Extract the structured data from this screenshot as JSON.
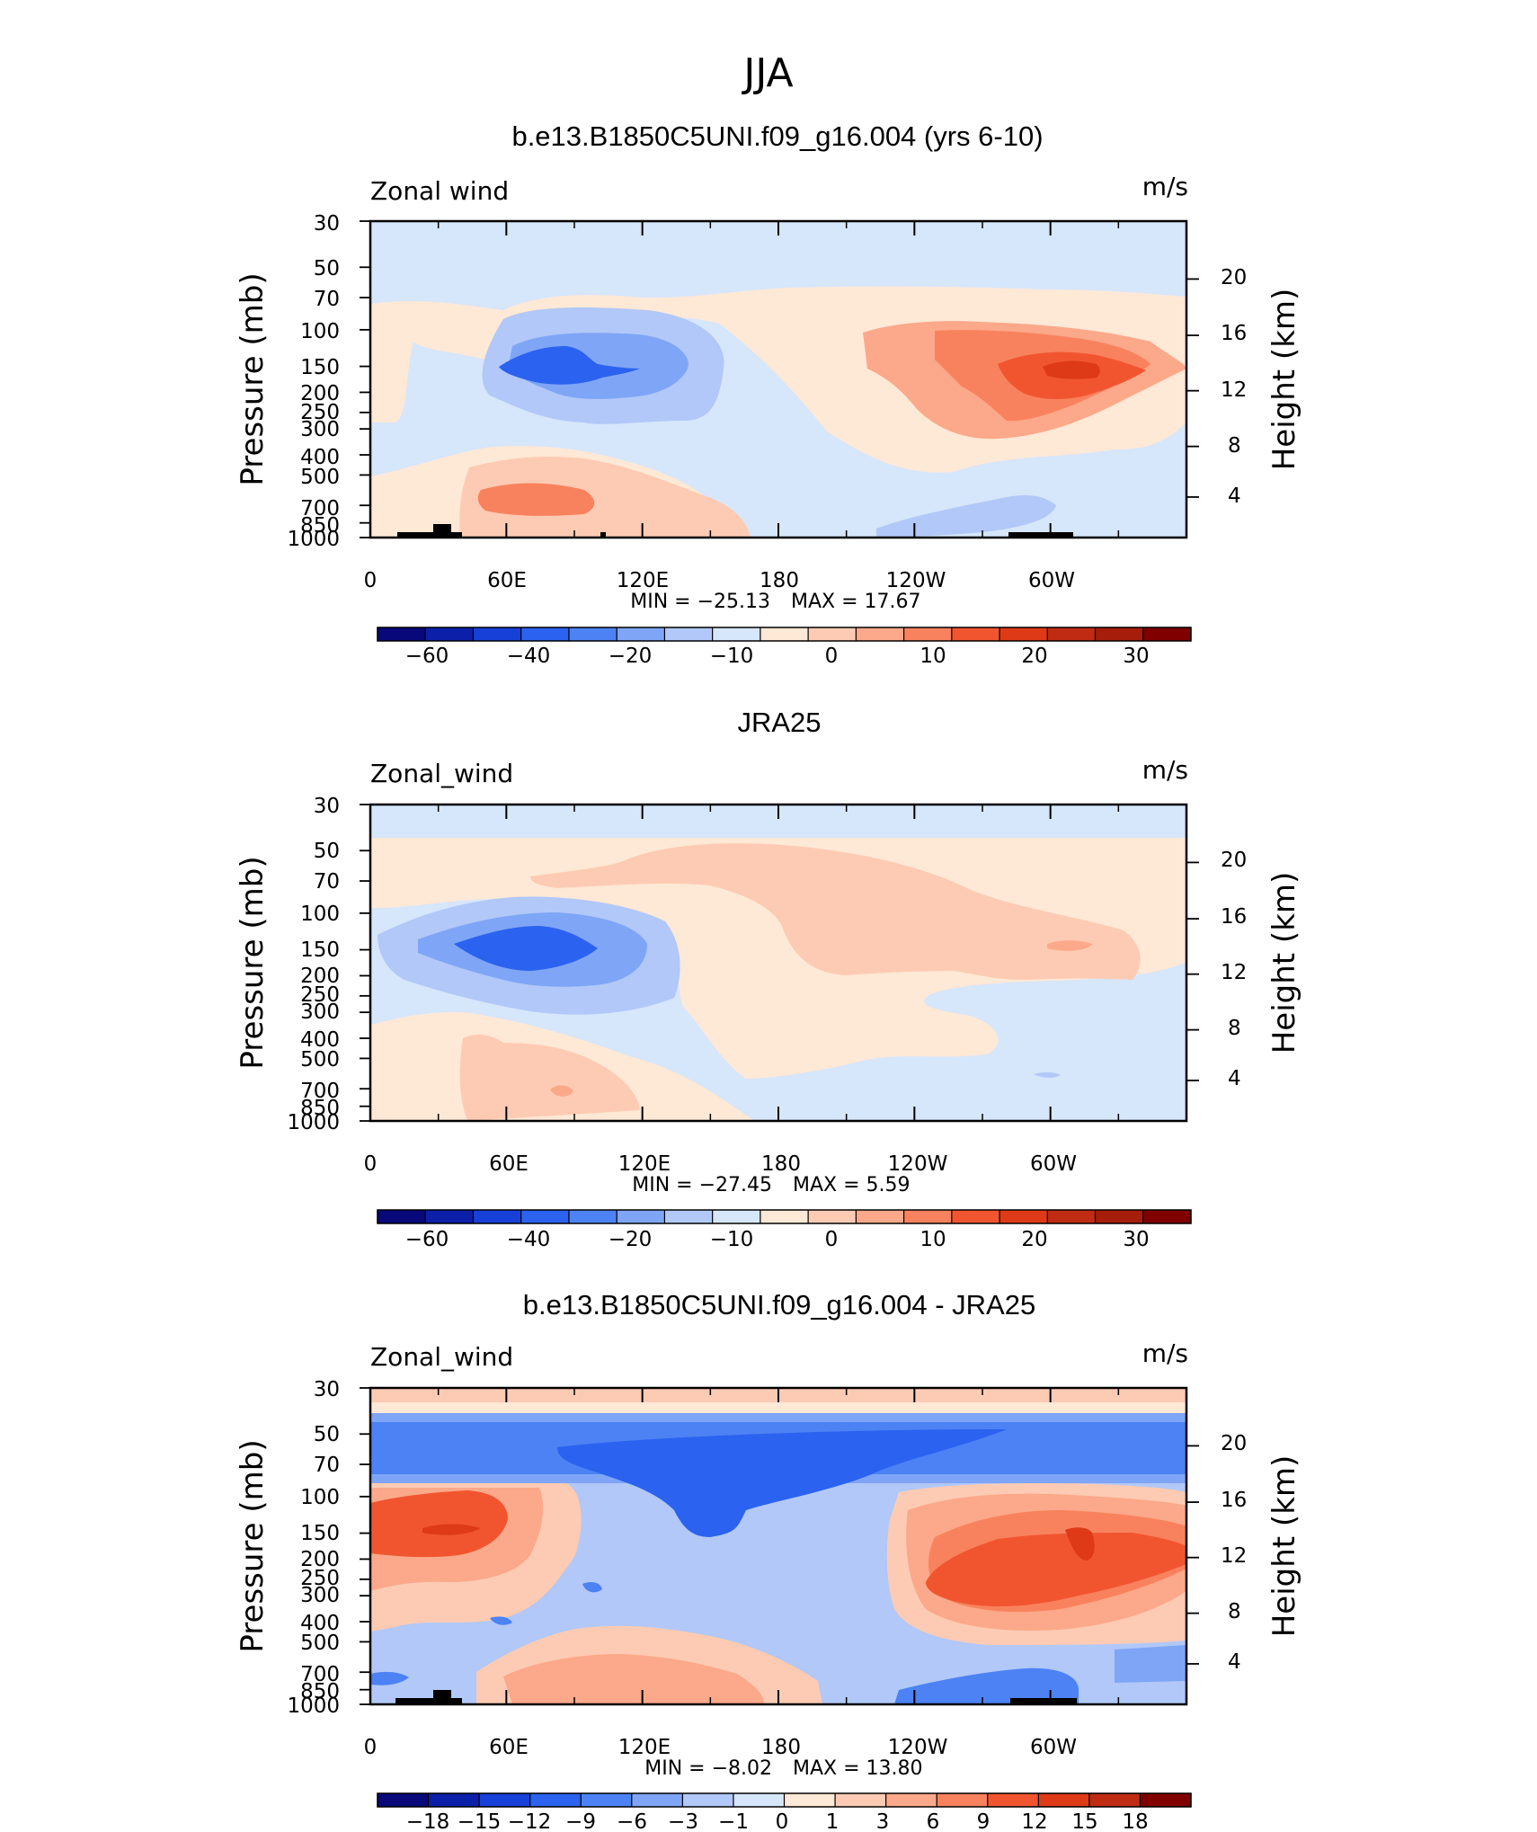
{
  "page_title": "JJA",
  "cbar_colors_main": [
    "#08087a",
    "#0b1fa8",
    "#1640d8",
    "#2b62ef",
    "#4d82f4",
    "#7fa5f6",
    "#b1c8f8",
    "#d6e6fb",
    "#fee8d6",
    "#fdcbb3",
    "#fca88a",
    "#f9825e",
    "#f15530",
    "#de3a18",
    "#c02c13",
    "#a61d0c",
    "#800000"
  ],
  "cbar_colors_diff": [
    "#08087a",
    "#0b1fa8",
    "#1640d8",
    "#2b62ef",
    "#4d82f4",
    "#7fa5f6",
    "#b1c8f8",
    "#d6e6fb",
    "#fee8d6",
    "#fdcbb3",
    "#fca88a",
    "#f9825e",
    "#f15530",
    "#de3a18",
    "#c02c13",
    "#800000"
  ],
  "panels": [
    {
      "title": "b.e13.B1850C5UNI.f09_g16.004 (yrs 6-10)",
      "var_label": "Zonal wind",
      "units": "m/s",
      "ylabel_left": "Pressure (mb)",
      "ylabel_right": "Height (km)",
      "min_text": "MIN = −25.13",
      "max_text": "MAX = 17.67",
      "cbar_labels": [
        "−60",
        "−40",
        "−20",
        "−10",
        "0",
        "10",
        "20",
        "30"
      ]
    },
    {
      "title": "JRA25",
      "var_label": "Zonal_wind",
      "units": "m/s",
      "ylabel_left": "Pressure (mb)",
      "ylabel_right": "Height (km)",
      "min_text": "MIN = −27.45",
      "max_text": "MAX = 5.59",
      "cbar_labels": [
        "−60",
        "−40",
        "−20",
        "−10",
        "0",
        "10",
        "20",
        "30"
      ]
    },
    {
      "title": "b.e13.B1850C5UNI.f09_g16.004 - JRA25",
      "var_label": "Zonal_wind",
      "units": "m/s",
      "ylabel_left": "Pressure (mb)",
      "ylabel_right": "Height (km)",
      "min_text": "MIN = −8.02",
      "max_text": "MAX = 13.80",
      "cbar_labels": [
        "−18",
        "−15",
        "−12",
        "−9",
        "−6",
        "−3",
        "−1",
        "0",
        "1",
        "3",
        "6",
        "9",
        "12",
        "15",
        "18"
      ]
    }
  ],
  "chart_data": [
    {
      "type": "heatmap",
      "title": "b.e13.B1850C5UNI.f09_g16.004 (yrs 6-10)",
      "variable": "Zonal wind",
      "units": "m/s",
      "x_ticks": [
        "0",
        "60E",
        "120E",
        "180",
        "120W",
        "60W"
      ],
      "x_tick_values": [
        0,
        60,
        120,
        180,
        240,
        300
      ],
      "xlim": [
        0,
        360
      ],
      "y_ticks": [
        "30",
        "50",
        "70",
        "100",
        "150",
        "200",
        "250",
        "300",
        "400",
        "500",
        "700",
        "850",
        "1000"
      ],
      "y_tick_values": [
        30,
        50,
        70,
        100,
        150,
        200,
        250,
        300,
        400,
        500,
        700,
        850,
        1000
      ],
      "ylim": [
        1000,
        30
      ],
      "y2_ticks": [
        "4",
        "8",
        "12",
        "16",
        "20"
      ],
      "min": -25.13,
      "max": 17.67,
      "contour_levels": [
        -60,
        -50,
        -40,
        -30,
        -20,
        -15,
        -10,
        -5,
        0,
        5,
        10,
        15,
        20,
        25,
        30,
        35
      ]
    },
    {
      "type": "heatmap",
      "title": "JRA25",
      "variable": "Zonal_wind",
      "units": "m/s",
      "x_ticks": [
        "0",
        "60E",
        "120E",
        "180",
        "120W",
        "60W"
      ],
      "x_tick_values": [
        0,
        60,
        120,
        180,
        240,
        300
      ],
      "xlim": [
        0,
        360
      ],
      "y_ticks": [
        "30",
        "50",
        "70",
        "100",
        "150",
        "200",
        "250",
        "300",
        "400",
        "500",
        "700",
        "850",
        "1000"
      ],
      "y_tick_values": [
        30,
        50,
        70,
        100,
        150,
        200,
        250,
        300,
        400,
        500,
        700,
        850,
        1000
      ],
      "ylim": [
        1000,
        30
      ],
      "y2_ticks": [
        "4",
        "8",
        "12",
        "16",
        "20"
      ],
      "min": -27.45,
      "max": 5.59,
      "contour_levels": [
        -60,
        -50,
        -40,
        -30,
        -20,
        -15,
        -10,
        -5,
        0,
        5,
        10,
        15,
        20,
        25,
        30,
        35
      ]
    },
    {
      "type": "heatmap",
      "title": "b.e13.B1850C5UNI.f09_g16.004 - JRA25",
      "variable": "Zonal_wind",
      "units": "m/s",
      "x_ticks": [
        "0",
        "60E",
        "120E",
        "180",
        "120W",
        "60W"
      ],
      "x_tick_values": [
        0,
        60,
        120,
        180,
        240,
        300
      ],
      "xlim": [
        0,
        360
      ],
      "y_ticks": [
        "30",
        "50",
        "70",
        "100",
        "150",
        "200",
        "250",
        "300",
        "400",
        "500",
        "700",
        "850",
        "1000"
      ],
      "y_tick_values": [
        30,
        50,
        70,
        100,
        150,
        200,
        250,
        300,
        400,
        500,
        700,
        850,
        1000
      ],
      "ylim": [
        1000,
        30
      ],
      "y2_ticks": [
        "4",
        "8",
        "12",
        "16",
        "20"
      ],
      "min": -8.02,
      "max": 13.8,
      "contour_levels": [
        -18,
        -15,
        -12,
        -9,
        -6,
        -3,
        -1,
        0,
        1,
        3,
        6,
        9,
        12,
        15,
        18
      ]
    }
  ]
}
